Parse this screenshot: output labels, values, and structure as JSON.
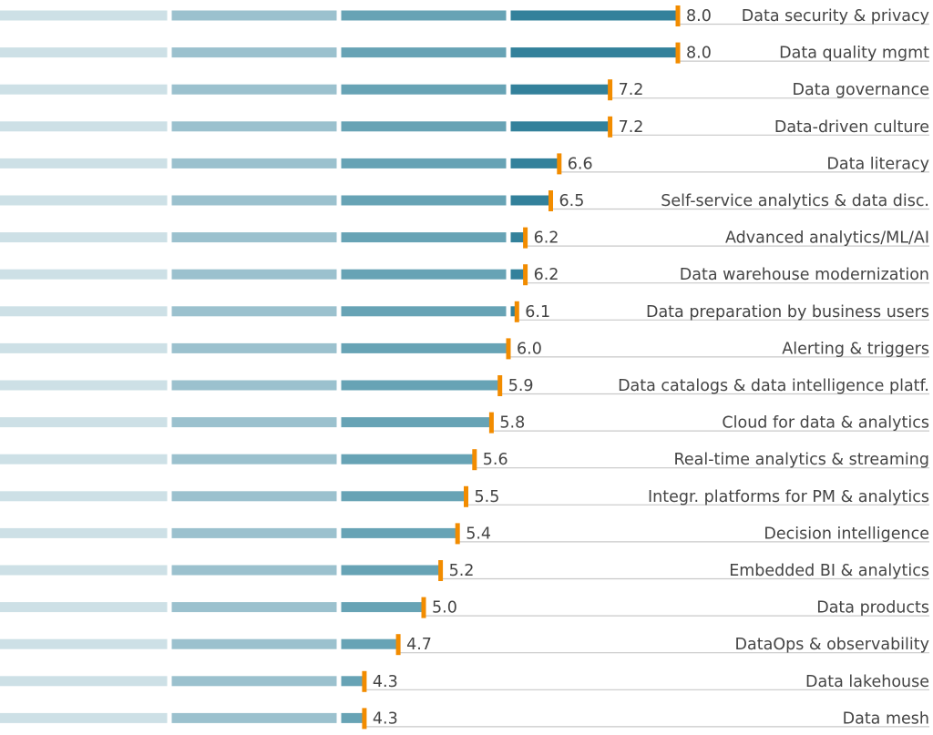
{
  "chart_data": {
    "type": "bar",
    "orientation": "horizontal",
    "title": "",
    "xlabel": "",
    "ylabel": "",
    "xlim": [
      0,
      10
    ],
    "band_step": 2,
    "grid": false,
    "categories": [
      "Data security & privacy",
      "Data quality mgmt",
      "Data governance",
      "Data-driven culture",
      "Data literacy",
      "Self-service analytics & data disc.",
      "Advanced analytics/ML/AI",
      "Data warehouse modernization",
      "Data preparation by business users",
      "Alerting & triggers",
      "Data catalogs & data intelligence platf.",
      "Cloud for data & analytics",
      "Real-time analytics & streaming",
      "Integr. platforms for PM & analytics",
      "Decision intelligence",
      "Embedded BI & analytics",
      "Data products",
      "DataOps & observability",
      "Data lakehouse",
      "Data mesh"
    ],
    "values": [
      8.0,
      8.0,
      7.2,
      7.2,
      6.6,
      6.5,
      6.2,
      6.2,
      6.1,
      6.0,
      5.9,
      5.8,
      5.6,
      5.5,
      5.4,
      5.2,
      5.0,
      4.7,
      4.3,
      4.3
    ],
    "value_labels": [
      "8.0",
      "8.0",
      "7.2",
      "7.2",
      "6.6",
      "6.5",
      "6.2",
      "6.2",
      "6.1",
      "6.0",
      "5.9",
      "5.8",
      "5.6",
      "5.5",
      "5.4",
      "5.2",
      "5.0",
      "4.7",
      "4.3",
      "4.3"
    ],
    "colors": {
      "band_track": [
        "#cde0e6",
        "#9bc1ce",
        "#67a3b5",
        "#33819b"
      ],
      "marker": "#f28c00",
      "baseline": "#c8c8c8",
      "text": "#444444"
    }
  }
}
